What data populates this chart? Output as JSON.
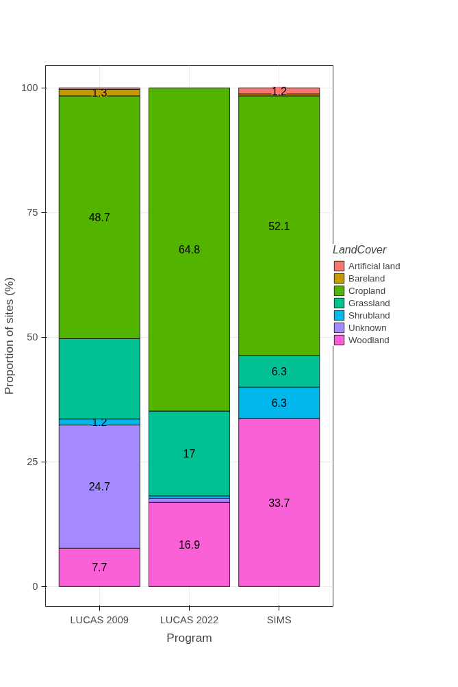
{
  "chart_data": {
    "type": "bar",
    "stacked": true,
    "xlabel": "Program",
    "ylabel": "Proportion of sites (%)",
    "legend_title": "LandCover",
    "categories": [
      "LUCAS 2009",
      "LUCAS 2022",
      "SIMS"
    ],
    "ylim": [
      -4,
      104.5
    ],
    "yticks": [
      0,
      25,
      50,
      75,
      100
    ],
    "grid": true,
    "legend": "right",
    "series": [
      {
        "name": "Woodland",
        "color": "#fb61d7",
        "values": [
          7.7,
          16.9,
          33.7
        ],
        "value_labels": [
          "7.7",
          "16.9",
          "33.7"
        ]
      },
      {
        "name": "Unknown",
        "color": "#a58aff",
        "values": [
          24.7,
          0.8,
          0
        ],
        "value_labels": [
          "24.7",
          null,
          null
        ]
      },
      {
        "name": "Shrubland",
        "color": "#00b6eb",
        "values": [
          1.2,
          0.5,
          6.3
        ],
        "value_labels": [
          "1.2",
          null,
          "6.3"
        ]
      },
      {
        "name": "Grassland",
        "color": "#00c094",
        "values": [
          16.1,
          17,
          6.3
        ],
        "value_labels": [
          null,
          "17",
          "6.3"
        ]
      },
      {
        "name": "Cropland",
        "color": "#53b400",
        "values": [
          48.7,
          64.8,
          52.1
        ],
        "value_labels": [
          "48.7",
          "64.8",
          "52.1"
        ]
      },
      {
        "name": "Bareland",
        "color": "#c49a00",
        "values": [
          1.3,
          0,
          0.4
        ],
        "value_labels": [
          "1.3",
          null,
          null
        ]
      },
      {
        "name": "Artificial land",
        "color": "#f8766d",
        "values": [
          0.3,
          0,
          1.2
        ],
        "value_labels": [
          null,
          null,
          "1.2"
        ]
      }
    ]
  }
}
